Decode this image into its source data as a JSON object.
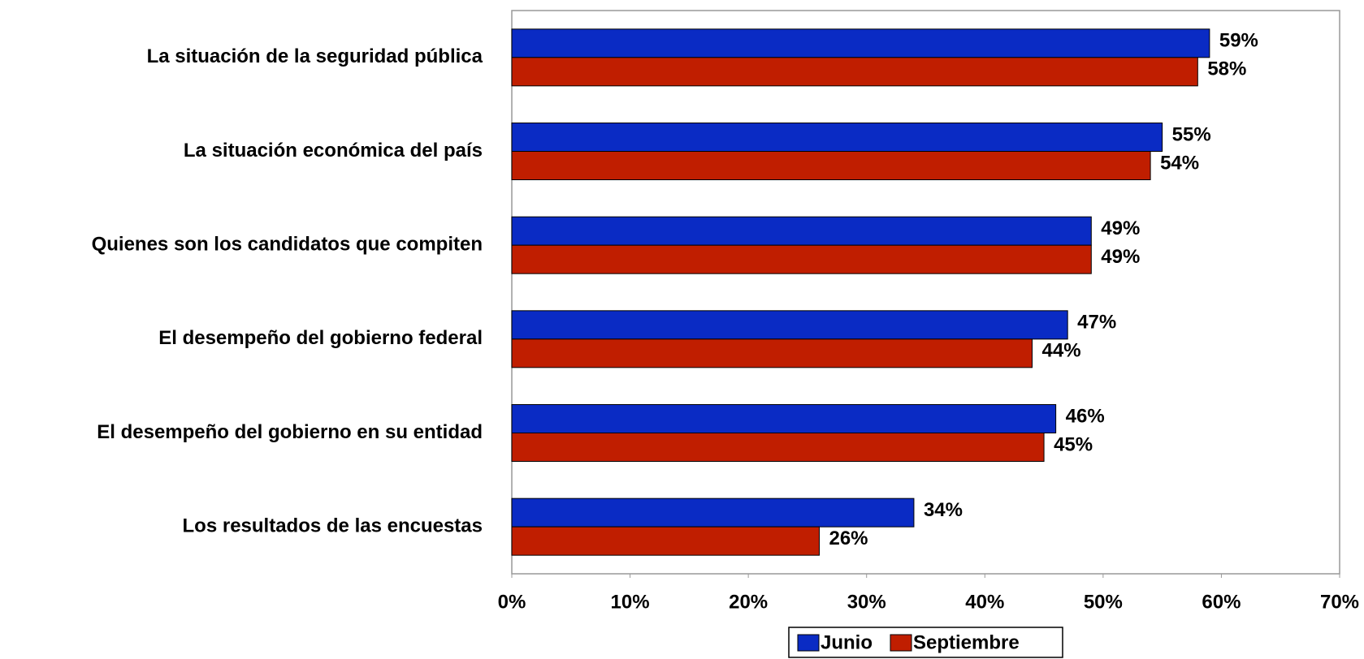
{
  "chart_data": {
    "type": "bar",
    "orientation": "horizontal",
    "categories": [
      "La situación de la seguridad pública",
      "La situación económica del país",
      "Quienes son los candidatos que compiten",
      "El desempeño del gobierno federal",
      "El desempeño del gobierno en su entidad",
      "Los resultados de las encuestas"
    ],
    "series": [
      {
        "name": "Junio",
        "color": "#0a2bc4",
        "values": [
          59,
          55,
          49,
          47,
          46,
          34
        ],
        "value_labels": [
          "59%",
          "55%",
          "49%",
          "47%",
          "46%",
          "34%"
        ]
      },
      {
        "name": "Septiembre",
        "color": "#c01e00",
        "values": [
          58,
          54,
          49,
          44,
          45,
          26
        ],
        "value_labels": [
          "58%",
          "54%",
          "49%",
          "44%",
          "45%",
          "26%"
        ]
      }
    ],
    "xlim": [
      0,
      70
    ],
    "xticks": [
      {
        "value": 0,
        "label": "0%"
      },
      {
        "value": 10,
        "label": "10%"
      },
      {
        "value": 20,
        "label": "20%"
      },
      {
        "value": 30,
        "label": "30%"
      },
      {
        "value": 40,
        "label": "40%"
      },
      {
        "value": 50,
        "label": "50%"
      },
      {
        "value": 60,
        "label": "60%"
      },
      {
        "value": 70,
        "label": "70%"
      }
    ],
    "grid": false,
    "legend": "bottom"
  }
}
